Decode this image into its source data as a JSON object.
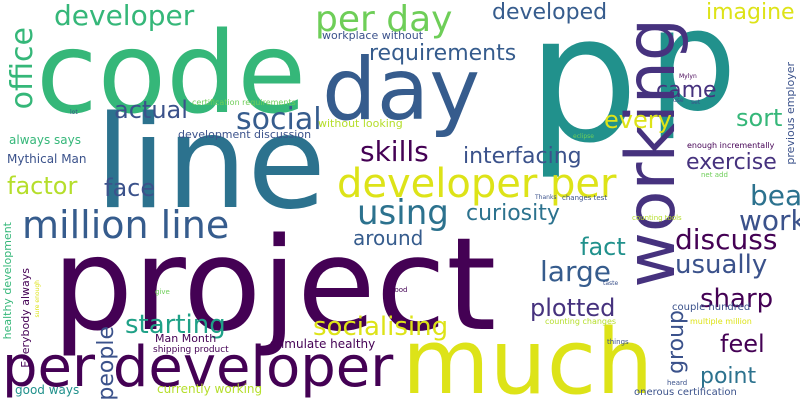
{
  "words": [
    {
      "text": "p",
      "color": "#21918c"
    },
    {
      "text": "p",
      "color": "#21918c"
    },
    {
      "text": "code",
      "color": "#35b779"
    },
    {
      "text": "line",
      "color": "#2c728e"
    },
    {
      "text": "project",
      "color": "#440154"
    },
    {
      "text": "working",
      "color": "#46327e"
    },
    {
      "text": "day",
      "color": "#365c8d"
    },
    {
      "text": "much",
      "color": "#dde318"
    },
    {
      "text": "per developer",
      "color": "#440154"
    },
    {
      "text": "developer per",
      "color": "#dde318"
    },
    {
      "text": "million line",
      "color": "#365c8d"
    },
    {
      "text": "per day",
      "color": "#6ece58"
    },
    {
      "text": "developer",
      "color": "#35b779"
    },
    {
      "text": "developed",
      "color": "#365c8d"
    },
    {
      "text": "imagine",
      "color": "#dde318"
    },
    {
      "text": "office",
      "color": "#35b779"
    },
    {
      "text": "requirements",
      "color": "#365c8d"
    },
    {
      "text": "using",
      "color": "#2c728e"
    },
    {
      "text": "social",
      "color": "#365c8d"
    },
    {
      "text": "actual",
      "color": "#3b528b"
    },
    {
      "text": "came",
      "color": "#46327e"
    },
    {
      "text": "every",
      "color": "#dde318"
    },
    {
      "text": "sort",
      "color": "#35b779"
    },
    {
      "text": "skills",
      "color": "#440154"
    },
    {
      "text": "interfacing",
      "color": "#3b528b"
    },
    {
      "text": "exercise",
      "color": "#46327e"
    },
    {
      "text": "face",
      "color": "#3b528b"
    },
    {
      "text": "factor",
      "color": "#b5de2b"
    },
    {
      "text": "curiosity",
      "color": "#2c728e"
    },
    {
      "text": "beat",
      "color": "#2c728e"
    },
    {
      "text": "work",
      "color": "#3b528b"
    },
    {
      "text": "discuss",
      "color": "#440154"
    },
    {
      "text": "around",
      "color": "#365c8d"
    },
    {
      "text": "fact",
      "color": "#21918c"
    },
    {
      "text": "usually",
      "color": "#3b528b"
    },
    {
      "text": "large",
      "color": "#365c8d"
    },
    {
      "text": "sharp",
      "color": "#440154"
    },
    {
      "text": "plotted",
      "color": "#46327e"
    },
    {
      "text": "starting",
      "color": "#1fa187"
    },
    {
      "text": "socialising",
      "color": "#dde318"
    },
    {
      "text": "people",
      "color": "#3b528b"
    },
    {
      "text": "group",
      "color": "#3b528b"
    },
    {
      "text": "feel",
      "color": "#440154"
    },
    {
      "text": "point",
      "color": "#2c728e"
    },
    {
      "text": "Mythical Man",
      "color": "#3b528b"
    },
    {
      "text": "always says",
      "color": "#35b779"
    },
    {
      "text": "development discussion",
      "color": "#3b528b"
    },
    {
      "text": "without looking",
      "color": "#b5de2b"
    },
    {
      "text": "workplace without",
      "color": "#3b528b"
    },
    {
      "text": "certification requirements",
      "color": "#6ece58"
    },
    {
      "text": "healthy development",
      "color": "#35b779"
    },
    {
      "text": "Everybody always",
      "color": "#440154"
    },
    {
      "text": "Man Month",
      "color": "#440154"
    },
    {
      "text": "stimulate healthy",
      "color": "#440154"
    },
    {
      "text": "shipping product",
      "color": "#440154"
    },
    {
      "text": "currently working",
      "color": "#b5de2b"
    },
    {
      "text": "good ways",
      "color": "#21918c"
    },
    {
      "text": "previous employer",
      "color": "#3b528b"
    },
    {
      "text": "enough incrementally",
      "color": "#440154"
    },
    {
      "text": "couple hundred",
      "color": "#3b528b"
    },
    {
      "text": "onerous certification",
      "color": "#3b528b"
    },
    {
      "text": "multiple million",
      "color": "#dde318"
    },
    {
      "text": "counting changes",
      "color": "#b5de2b"
    },
    {
      "text": "counting tools",
      "color": "#b5de2b"
    },
    {
      "text": "changes test",
      "color": "#3b528b"
    },
    {
      "text": "Thanks",
      "color": "#3b528b"
    },
    {
      "text": "net add",
      "color": "#6ece58"
    },
    {
      "text": "eclipse",
      "color": "#6ece58"
    },
    {
      "text": "Mylyn",
      "color": "#440154"
    },
    {
      "text": "use",
      "color": "#3b528b"
    },
    {
      "text": "set",
      "color": "#3b528b"
    },
    {
      "text": "lot",
      "color": "#3b528b"
    },
    {
      "text": "good",
      "color": "#440154"
    },
    {
      "text": "give",
      "color": "#6ece58"
    },
    {
      "text": "taste",
      "color": "#3b528b"
    },
    {
      "text": "things",
      "color": "#3b528b"
    },
    {
      "text": "heard",
      "color": "#3b528b"
    },
    {
      "text": "sure enough",
      "color": "#dde318"
    }
  ]
}
